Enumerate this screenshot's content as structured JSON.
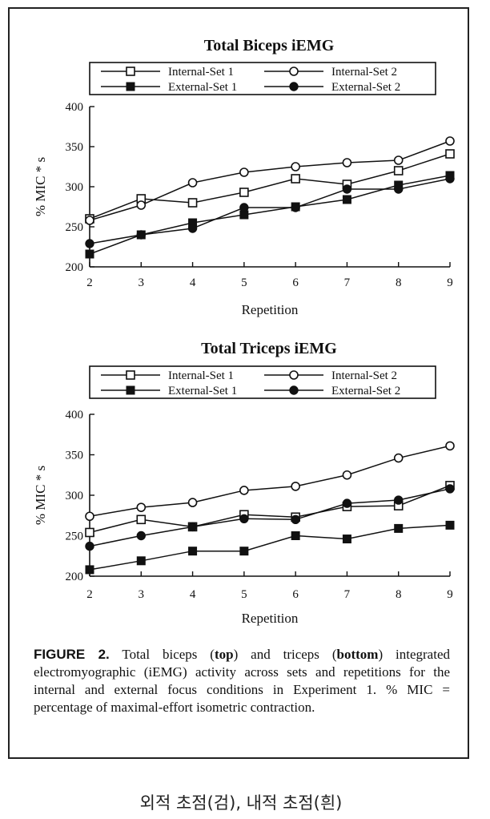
{
  "chart_data": [
    {
      "type": "line",
      "title": "Total Biceps iEMG",
      "xlabel": "Repetition",
      "ylabel": "% MIC * s",
      "xlim": [
        2,
        9
      ],
      "ylim": [
        200,
        400
      ],
      "x": [
        2,
        3,
        4,
        5,
        6,
        7,
        8,
        9
      ],
      "yticks": [
        200,
        250,
        300,
        350,
        400
      ],
      "series": [
        {
          "name": "Internal-Set 1",
          "marker": "open-square",
          "values": [
            260,
            285,
            280,
            293,
            310,
            303,
            320,
            341
          ]
        },
        {
          "name": "Internal-Set 2",
          "marker": "open-circle",
          "values": [
            258,
            277,
            305,
            318,
            325,
            330,
            333,
            357
          ]
        },
        {
          "name": "External-Set 1",
          "marker": "filled-square",
          "values": [
            216,
            240,
            255,
            265,
            275,
            284,
            302,
            314
          ]
        },
        {
          "name": "External-Set 2",
          "marker": "filled-circle",
          "values": [
            229,
            240,
            248,
            274,
            274,
            297,
            297,
            310
          ]
        }
      ]
    },
    {
      "type": "line",
      "title": "Total Triceps iEMG",
      "xlabel": "Repetition",
      "ylabel": "% MIC * s",
      "xlim": [
        2,
        9
      ],
      "ylim": [
        200,
        400
      ],
      "x": [
        2,
        3,
        4,
        5,
        6,
        7,
        8,
        9
      ],
      "yticks": [
        200,
        250,
        300,
        350,
        400
      ],
      "series": [
        {
          "name": "Internal-Set 1",
          "marker": "open-square",
          "values": [
            254,
            270,
            261,
            276,
            273,
            286,
            287,
            312
          ]
        },
        {
          "name": "Internal-Set 2",
          "marker": "open-circle",
          "values": [
            274,
            285,
            291,
            306,
            311,
            325,
            346,
            361
          ]
        },
        {
          "name": "External-Set 1",
          "marker": "filled-square",
          "values": [
            208,
            219,
            231,
            231,
            250,
            246,
            259,
            263
          ]
        },
        {
          "name": "External-Set 2",
          "marker": "filled-circle",
          "values": [
            237,
            250,
            261,
            271,
            270,
            290,
            294,
            308
          ]
        }
      ]
    }
  ],
  "caption": {
    "label": "FIGURE 2.",
    "parts": [
      {
        "text": " Total biceps (",
        "bold": false
      },
      {
        "text": "top",
        "bold": true
      },
      {
        "text": ") and triceps (",
        "bold": false
      },
      {
        "text": "bottom",
        "bold": true
      },
      {
        "text": ") integrated electromyographic (iEMG) activity across sets and repetitions for the internal and external focus conditions in Experiment 1. % MIC = percentage of maximal-effort isometric contraction.",
        "bold": false
      }
    ]
  },
  "footnote": "외적 초점(검), 내적 초점(흰)"
}
